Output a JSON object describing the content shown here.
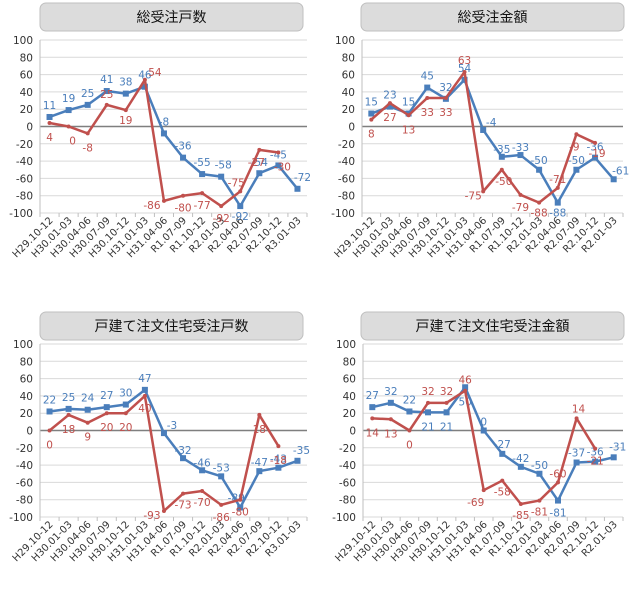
{
  "colors": {
    "blue": "#4a7ebb",
    "red": "#c0504d",
    "grid": "#d9d9d9",
    "zero": "#7f7f7f"
  },
  "chart_data": [
    {
      "type": "line",
      "title": "総受注戸数",
      "categories": [
        "H29.10-12",
        "H30.01-03",
        "H30.04-06",
        "H30.07-09",
        "H30.10-12",
        "H31.01-03",
        "H31.04-06",
        "R1.07-09",
        "R1.10-12",
        "R2.01-03",
        "R2.04-06",
        "R2.07-09",
        "R2.10-12",
        "R3.01-03"
      ],
      "ylim": [
        -100,
        100
      ],
      "yticks": [
        100,
        80,
        60,
        40,
        20,
        0,
        -20,
        -40,
        -60,
        -80,
        -100
      ],
      "grid": true,
      "series": [
        {
          "color": "blue",
          "values": [
            11,
            19,
            25,
            41,
            38,
            46,
            -8,
            -36,
            -55,
            -58,
            -92,
            -54,
            -45,
            -72
          ]
        },
        {
          "color": "red",
          "values": [
            4,
            0,
            -8,
            25,
            19,
            54,
            -86,
            -80,
            -77,
            -92,
            -75,
            -27,
            -30,
            null
          ]
        }
      ]
    },
    {
      "type": "line",
      "title": "総受注金額",
      "categories": [
        "H29.10-12",
        "H30.01-03",
        "H30.04-06",
        "H30.07-09",
        "H30.10-12",
        "H31.01-03",
        "H31.04-06",
        "R1.07-09",
        "R1.10-12",
        "R2.01-03",
        "R2.04-06",
        "R2.07-09",
        "R2.10-12",
        "R2.01-03"
      ],
      "ylim": [
        -100,
        100
      ],
      "yticks": [
        100,
        80,
        60,
        40,
        20,
        0,
        -20,
        -40,
        -60,
        -80,
        -100
      ],
      "grid": true,
      "series": [
        {
          "color": "blue",
          "values": [
            15,
            23,
            15,
            45,
            32,
            54,
            -4,
            -35,
            -33,
            -50,
            -88,
            -50,
            -36,
            -61
          ]
        },
        {
          "color": "red",
          "values": [
            8,
            27,
            13,
            33,
            33,
            63,
            -75,
            -50,
            -79,
            -88,
            -71,
            -9,
            -19,
            null
          ]
        }
      ]
    },
    {
      "type": "line",
      "title": "戸建て注文住宅受注戸数",
      "categories": [
        "H29.10-12",
        "H30.01-03",
        "H30.04-06",
        "H30.07-09",
        "H30.10-12",
        "H31.01-03",
        "H31.04-06",
        "R1.07-09",
        "R1.10-12",
        "R2.01-03",
        "R2.04-06",
        "R2.07-09",
        "R2.10-12",
        "R3.01-03"
      ],
      "ylim": [
        -100,
        100
      ],
      "yticks": [
        100,
        80,
        60,
        40,
        20,
        0,
        -20,
        -40,
        -60,
        -80,
        -100
      ],
      "grid": true,
      "series": [
        {
          "color": "blue",
          "values": [
            22,
            25,
            24,
            27,
            30,
            47,
            -3,
            -32,
            -46,
            -53,
            -89,
            -47,
            -43,
            -35
          ]
        },
        {
          "color": "red",
          "values": [
            0,
            18,
            9,
            20,
            20,
            40,
            -93,
            -73,
            -70,
            -86,
            -80,
            18,
            -18,
            null
          ]
        }
      ]
    },
    {
      "type": "line",
      "title": "戸建て注文住宅受注金額",
      "categories": [
        "H29.10-12",
        "H30.01-03",
        "H30.04-06",
        "H30.07-09",
        "H30.10-12",
        "H31.01-03",
        "H31.04-06",
        "R1.07-09",
        "R1.10-12",
        "R2.01-03",
        "R2.04-06",
        "R2.07-09",
        "R2.10-12",
        "R2.01-03"
      ],
      "ylim": [
        -100,
        100
      ],
      "yticks": [
        100,
        80,
        60,
        40,
        20,
        0,
        -20,
        -40,
        -60,
        -80,
        -100
      ],
      "grid": true,
      "series": [
        {
          "color": "blue",
          "values": [
            27,
            32,
            22,
            21,
            21,
            50,
            0,
            -27,
            -42,
            -50,
            -81,
            -37,
            -36,
            -31
          ]
        },
        {
          "color": "red",
          "values": [
            14,
            13,
            0,
            32,
            32,
            46,
            -69,
            -58,
            -85,
            -81,
            -60,
            14,
            -21,
            null
          ]
        }
      ]
    }
  ]
}
